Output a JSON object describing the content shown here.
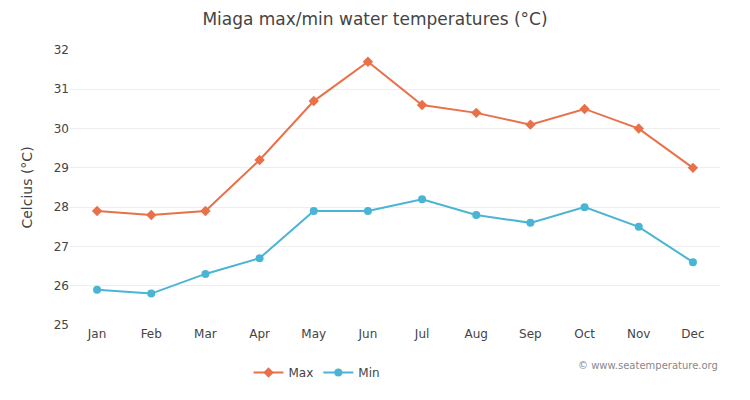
{
  "chart_data": {
    "type": "line",
    "title": "Miaga max/min water temperatures (°C)",
    "ylabel": "Celcius (°C)",
    "categories": [
      "Jan",
      "Feb",
      "Mar",
      "Apr",
      "May",
      "Jun",
      "Jul",
      "Aug",
      "Sep",
      "Oct",
      "Nov",
      "Dec"
    ],
    "series": [
      {
        "name": "Max",
        "color": "#e8714a",
        "marker": "diamond",
        "values": [
          27.9,
          27.8,
          27.9,
          29.2,
          30.7,
          31.7,
          30.6,
          30.4,
          30.1,
          30.5,
          30.0,
          29.0
        ]
      },
      {
        "name": "Min",
        "color": "#4ab4d4",
        "marker": "circle",
        "values": [
          25.9,
          25.8,
          26.3,
          26.7,
          27.9,
          27.9,
          28.2,
          27.8,
          27.6,
          28.0,
          27.5,
          26.6
        ]
      }
    ],
    "ylim": [
      25,
      32
    ],
    "yticks": [
      25,
      26,
      27,
      28,
      29,
      30,
      31,
      32
    ],
    "grid": true,
    "legend": "bottom",
    "annotations": [
      "© www.seatemperature.org"
    ]
  }
}
